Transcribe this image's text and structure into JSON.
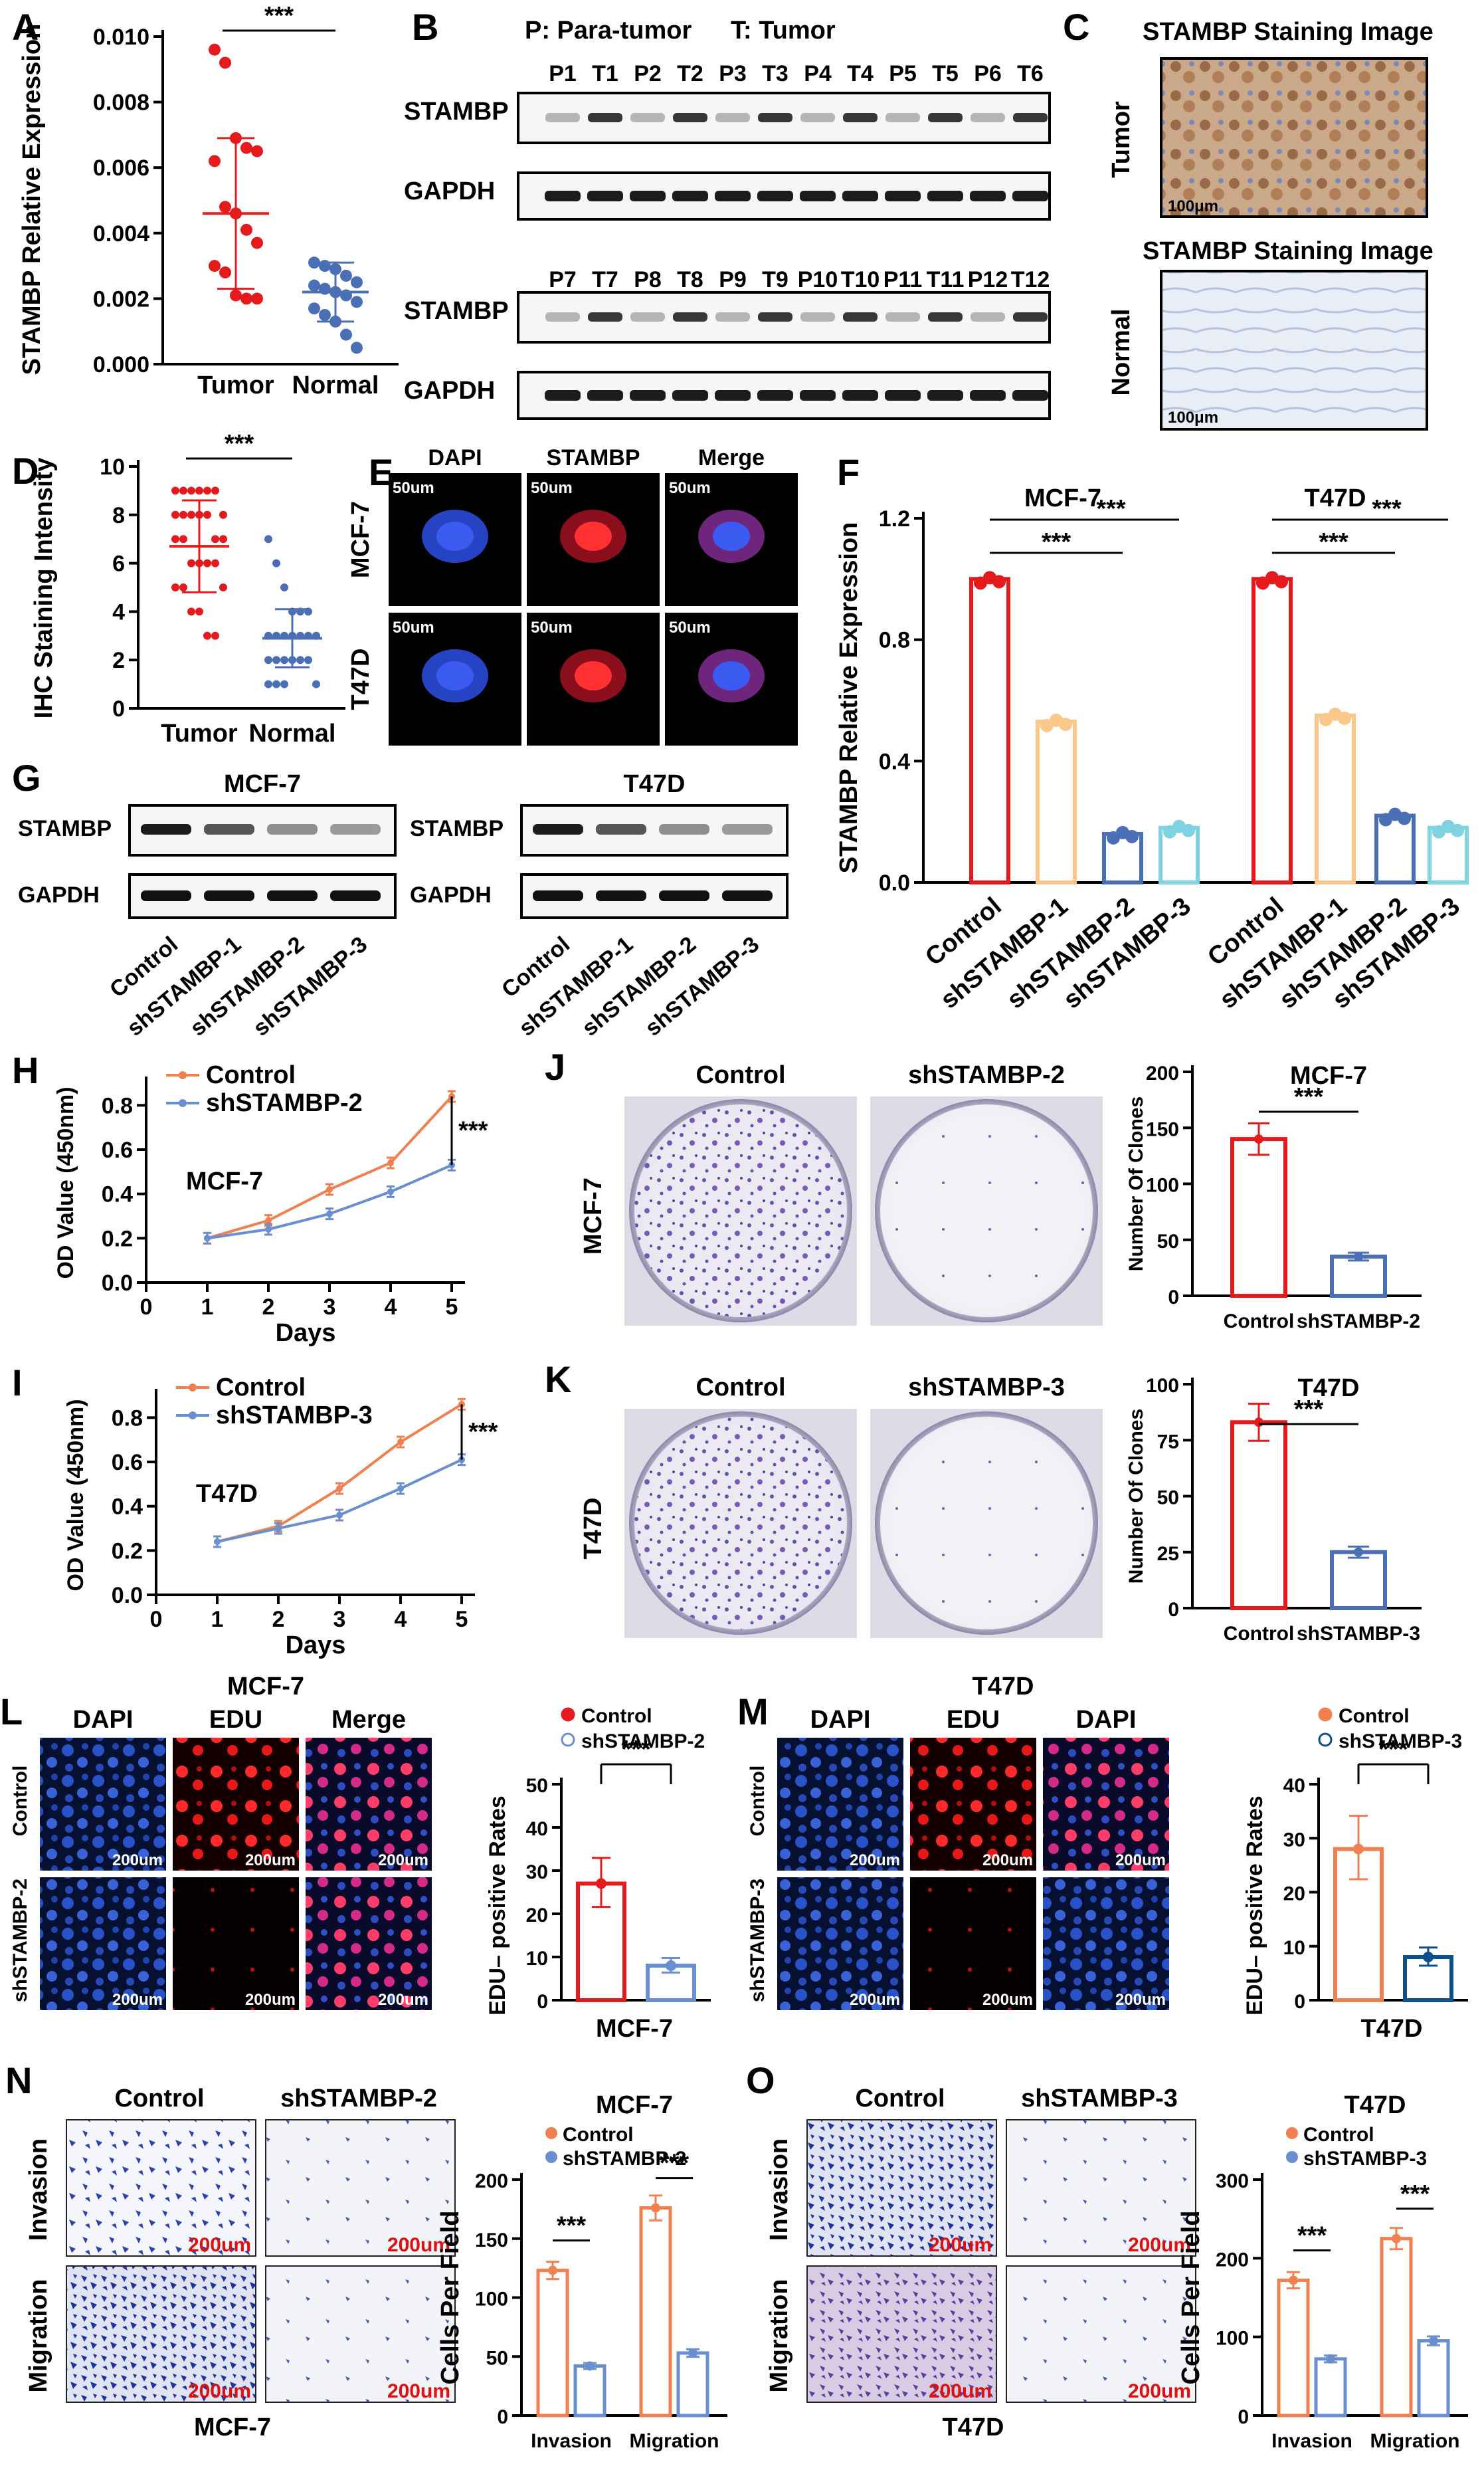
{
  "panels": {
    "A": "A",
    "B": "B",
    "C": "C",
    "D": "D",
    "E": "E",
    "F": "F",
    "G": "G",
    "H": "H",
    "I": "I",
    "J": "J",
    "K": "K",
    "L": "L",
    "M": "M",
    "N": "N",
    "O": "O"
  },
  "sig": "***",
  "colors": {
    "red": "#e41a1c",
    "blue": "#4a6fb5",
    "orange": "#f08050",
    "peach": "#fbc88b",
    "teal": "#7fd3e0",
    "navy": "#0d4f8b",
    "lightblue": "#6a8fcf"
  },
  "panelA": {
    "ylabel": "STAMBP Relative Expression",
    "yticks": [
      "0.000",
      "0.002",
      "0.004",
      "0.006",
      "0.008",
      "0.010"
    ],
    "xticks": [
      "Tumor",
      "Normal"
    ],
    "chart_data": {
      "type": "scatter",
      "ylim": [
        0,
        0.01
      ],
      "series": [
        {
          "name": "Tumor",
          "mean": 0.0046,
          "sd": 0.0023,
          "values": [
            0.0096,
            0.0092,
            0.0069,
            0.0066,
            0.0065,
            0.0062,
            0.0048,
            0.0046,
            0.0041,
            0.0037,
            0.003,
            0.0028,
            0.0021,
            0.002,
            0.002
          ]
        },
        {
          "name": "Normal",
          "mean": 0.0022,
          "sd": 0.0009,
          "values": [
            0.0031,
            0.003,
            0.0029,
            0.0027,
            0.0025,
            0.0024,
            0.0023,
            0.0022,
            0.0021,
            0.0019,
            0.0017,
            0.0015,
            0.0013,
            0.0009,
            0.0005
          ]
        }
      ]
    }
  },
  "panelB": {
    "legend_p": "P: Para-tumor",
    "legend_t": "T: Tumor",
    "row1_lanes": [
      "P1",
      "T1",
      "P2",
      "T2",
      "P3",
      "T3",
      "P4",
      "T4",
      "P5",
      "T5",
      "P6",
      "T6"
    ],
    "row2_lanes": [
      "P7",
      "T7",
      "P8",
      "T8",
      "P9",
      "T9",
      "P10",
      "T10",
      "P11",
      "T11",
      "P12",
      "T12"
    ],
    "stambp": "STAMBP",
    "gapdh": "GAPDH"
  },
  "panelC": {
    "title": "STAMBP   Staining Image",
    "tumor": "Tumor",
    "normal": "Normal",
    "scale": "100μm"
  },
  "panelD": {
    "ylabel": "IHC Staining Intensity",
    "yticks": [
      "0",
      "2",
      "4",
      "6",
      "8",
      "10"
    ],
    "xticks": [
      "Tumor",
      "Normal"
    ],
    "chart_data": {
      "type": "scatter",
      "ylim": [
        0,
        10
      ],
      "series": [
        {
          "name": "Tumor",
          "mean": 6.7,
          "sd": 1.9,
          "values": [
            9,
            9,
            9,
            9,
            9,
            9,
            8,
            8,
            8,
            8,
            8,
            8,
            7,
            7,
            7,
            7,
            6,
            6,
            6,
            6,
            5,
            5,
            5,
            4,
            4,
            3,
            3
          ]
        },
        {
          "name": "Normal",
          "mean": 2.9,
          "sd": 1.2,
          "values": [
            7,
            6,
            5,
            4,
            4,
            4,
            3,
            3,
            3,
            3,
            3,
            3,
            3,
            3,
            2,
            2,
            2,
            2,
            2,
            2,
            1,
            1,
            1,
            1
          ]
        }
      ]
    }
  },
  "panelE": {
    "cols": [
      "DAPI",
      "STAMBP",
      "Merge"
    ],
    "rows": [
      "MCF-7",
      "T47D"
    ],
    "scale": "50um"
  },
  "panelF": {
    "ylabel": "STAMBP Relative Expression",
    "yticks": [
      "0.0",
      "0.4",
      "0.8",
      "1.2"
    ],
    "titles": [
      "MCF-7",
      "T47D"
    ],
    "cats": [
      "Control",
      "shSTAMBP-1",
      "shSTAMBP-2",
      "shSTAMBP-3"
    ],
    "chart_data": {
      "type": "bar",
      "categories": [
        "Control",
        "shSTAMBP-1",
        "shSTAMBP-2",
        "shSTAMBP-3"
      ],
      "ylim": [
        0,
        1.2
      ],
      "series": [
        {
          "name": "MCF-7",
          "values": [
            1.0,
            0.53,
            0.16,
            0.18
          ]
        },
        {
          "name": "T47D",
          "values": [
            1.0,
            0.55,
            0.22,
            0.18
          ]
        }
      ]
    }
  },
  "panelG": {
    "titles": [
      "MCF-7",
      "T47D"
    ],
    "stambp": "STAMBP",
    "gapdh": "GAPDH",
    "lanes": [
      "Control",
      "shSTAMBP-1",
      "shSTAMBP-2",
      "shSTAMBP-3"
    ]
  },
  "panelH": {
    "cell": "MCF-7",
    "ylabel": "OD Value (450nm)",
    "xlabel": "Days",
    "xticks": [
      "0",
      "1",
      "2",
      "3",
      "4",
      "5"
    ],
    "yticks": [
      "0.0",
      "0.2",
      "0.4",
      "0.6",
      "0.8"
    ],
    "legend": [
      "Control",
      "shSTAMBP-2"
    ],
    "chart_data": {
      "type": "line",
      "x": [
        1,
        2,
        3,
        4,
        5
      ],
      "ylim": [
        0,
        0.9
      ],
      "series": [
        {
          "name": "Control",
          "values": [
            0.2,
            0.28,
            0.42,
            0.54,
            0.84
          ]
        },
        {
          "name": "shSTAMBP-2",
          "values": [
            0.2,
            0.24,
            0.31,
            0.41,
            0.53
          ]
        }
      ]
    }
  },
  "panelI": {
    "cell": "T47D",
    "ylabel": "OD Value (450nm)",
    "xlabel": "Days",
    "xticks": [
      "0",
      "1",
      "2",
      "3",
      "4",
      "5"
    ],
    "yticks": [
      "0.0",
      "0.2",
      "0.4",
      "0.6",
      "0.8"
    ],
    "legend": [
      "Control",
      "shSTAMBP-3"
    ],
    "chart_data": {
      "type": "line",
      "x": [
        1,
        2,
        3,
        4,
        5
      ],
      "ylim": [
        0,
        0.9
      ],
      "series": [
        {
          "name": "Control",
          "values": [
            0.24,
            0.31,
            0.48,
            0.69,
            0.86
          ]
        },
        {
          "name": "shSTAMBP-3",
          "values": [
            0.24,
            0.3,
            0.36,
            0.48,
            0.61
          ]
        }
      ]
    }
  },
  "panelJ": {
    "row": "MCF-7",
    "cols": [
      "Control",
      "shSTAMBP-2"
    ],
    "title": "MCF-7",
    "ylabel": "Number Of Clones",
    "yticks": [
      "0",
      "50",
      "100",
      "150",
      "200"
    ],
    "xcats": [
      "Control",
      "shSTAMBP-2"
    ],
    "chart_data": {
      "type": "bar",
      "categories": [
        "Control",
        "shSTAMBP-2"
      ],
      "values": [
        140,
        35
      ],
      "ylim": [
        0,
        200
      ]
    }
  },
  "panelK": {
    "row": "T47D",
    "cols": [
      "Control",
      "shSTAMBP-3"
    ],
    "title": "T47D",
    "ylabel": "Number Of Clones",
    "yticks": [
      "0",
      "25",
      "50",
      "75",
      "100"
    ],
    "xcats": [
      "Control",
      "shSTAMBP-3"
    ],
    "chart_data": {
      "type": "bar",
      "categories": [
        "Control",
        "shSTAMBP-3"
      ],
      "values": [
        83,
        25
      ],
      "ylim": [
        0,
        100
      ]
    }
  },
  "panelL": {
    "header": "MCF-7",
    "cols": [
      "DAPI",
      "EDU",
      "Merge"
    ],
    "rows": [
      "Control",
      "shSTAMBP-2"
    ],
    "scale": "200um",
    "ylabel": "EDU– positive Rates",
    "xlabel": "MCF-7",
    "legend": [
      "Control",
      "shSTAMBP-2"
    ],
    "yticks": [
      "0",
      "10",
      "20",
      "30",
      "40",
      "50"
    ],
    "chart_data": {
      "type": "bar",
      "categories": [
        "Control",
        "shSTAMBP-2"
      ],
      "values": [
        27,
        8
      ],
      "ylim": [
        0,
        50
      ]
    }
  },
  "panelM": {
    "header": "T47D",
    "cols": [
      "DAPI",
      "EDU",
      "DAPI"
    ],
    "rows": [
      "Control",
      "shSTAMBP-3"
    ],
    "scale": "200um",
    "ylabel": "EDU– positive Rates",
    "xlabel": "T47D",
    "legend": [
      "Control",
      "shSTAMBP-3"
    ],
    "yticks": [
      "0",
      "10",
      "20",
      "30",
      "40"
    ],
    "chart_data": {
      "type": "bar",
      "categories": [
        "Control",
        "shSTAMBP-3"
      ],
      "values": [
        28,
        8
      ],
      "ylim": [
        0,
        40
      ]
    }
  },
  "panelN": {
    "cols": [
      "Control",
      "shSTAMBP-2"
    ],
    "rows": [
      "Invasion",
      "Migration"
    ],
    "cell": "MCF-7",
    "scale": "200um",
    "title": "MCF-7",
    "ylabel": "Cells Per Field",
    "legend": [
      "Control",
      "shSTAMBP-2"
    ],
    "yticks": [
      "0",
      "50",
      "100",
      "150",
      "200"
    ],
    "xcats": [
      "Invasion",
      "Migration"
    ],
    "chart_data": {
      "type": "bar",
      "categories": [
        "Invasion",
        "Migration"
      ],
      "ylim": [
        0,
        200
      ],
      "series": [
        {
          "name": "Control",
          "values": [
            123,
            176
          ]
        },
        {
          "name": "shSTAMBP-2",
          "values": [
            42,
            53
          ]
        }
      ]
    }
  },
  "panelO": {
    "cols": [
      "Control",
      "shSTAMBP-3"
    ],
    "rows": [
      "Invasion",
      "Migration"
    ],
    "cell": "T47D",
    "scale": "200um",
    "title": "T47D",
    "ylabel": "Cells Per Field",
    "legend": [
      "Control",
      "shSTAMBP-3"
    ],
    "yticks": [
      "0",
      "100",
      "200",
      "300"
    ],
    "xcats": [
      "Invasion",
      "Migration"
    ],
    "chart_data": {
      "type": "bar",
      "categories": [
        "Invasion",
        "Migration"
      ],
      "ylim": [
        0,
        300
      ],
      "series": [
        {
          "name": "Control",
          "values": [
            172,
            225
          ]
        },
        {
          "name": "shSTAMBP-3",
          "values": [
            72,
            95
          ]
        }
      ]
    }
  }
}
